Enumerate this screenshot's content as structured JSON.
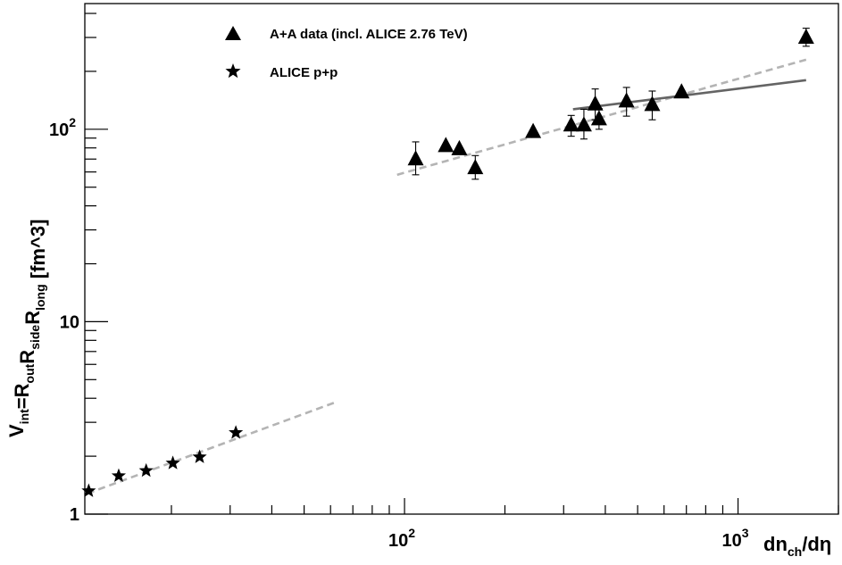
{
  "chart_data": {
    "type": "scatter",
    "x_scale": "log",
    "y_scale": "log",
    "xlim": [
      11,
      2000
    ],
    "ylim": [
      1,
      450
    ],
    "x_major_ticks": [
      {
        "value": 100,
        "base": "10",
        "exp": "2"
      },
      {
        "value": 1000,
        "base": "10",
        "exp": "3"
      }
    ],
    "y_major_ticks": [
      {
        "value": 1,
        "label": "1"
      },
      {
        "value": 10,
        "label": "10"
      },
      {
        "value": 100,
        "base": "10",
        "exp": "2"
      }
    ],
    "xlabel": {
      "a": "dn",
      "a_sub": "ch",
      "b": "/dη"
    },
    "ylabel": {
      "parts": [
        {
          "t": "V",
          "s": "int"
        },
        {
          "t": "=R",
          "s": "out"
        },
        {
          "t": "R",
          "s": "side"
        },
        {
          "t": "R",
          "s": "long"
        },
        {
          "t": " [fm^3]",
          "s": ""
        }
      ]
    },
    "legend": {
      "position": "top-left",
      "entries": [
        {
          "marker": "triangle",
          "label": "A+A data (incl. ALICE 2.76 TeV)"
        },
        {
          "marker": "star",
          "label": "ALICE p+p"
        }
      ]
    },
    "series": [
      {
        "name": "A+A data (incl. ALICE 2.76 TeV)",
        "marker": "triangle",
        "color": "#000000",
        "points": [
          {
            "x": 108,
            "y": 70,
            "lo": 58,
            "hi": 86
          },
          {
            "x": 133,
            "y": 82
          },
          {
            "x": 146,
            "y": 79
          },
          {
            "x": 163,
            "y": 63,
            "lo": 55,
            "hi": 73
          },
          {
            "x": 243,
            "y": 97
          },
          {
            "x": 316,
            "y": 105,
            "lo": 92,
            "hi": 118
          },
          {
            "x": 345,
            "y": 105,
            "lo": 89,
            "hi": 127
          },
          {
            "x": 373,
            "y": 135,
            "lo": 112,
            "hi": 162
          },
          {
            "x": 383,
            "y": 113,
            "lo": 100,
            "hi": 128
          },
          {
            "x": 463,
            "y": 140,
            "lo": 117,
            "hi": 165
          },
          {
            "x": 553,
            "y": 134,
            "lo": 112,
            "hi": 158
          },
          {
            "x": 677,
            "y": 156
          },
          {
            "x": 1600,
            "y": 300,
            "lo": 270,
            "hi": 335
          }
        ]
      },
      {
        "name": "ALICE p+p",
        "marker": "star",
        "color": "#000000",
        "points": [
          {
            "x": 11.3,
            "y": 1.32
          },
          {
            "x": 13.9,
            "y": 1.58
          },
          {
            "x": 16.8,
            "y": 1.68
          },
          {
            "x": 20.2,
            "y": 1.84
          },
          {
            "x": 24.3,
            "y": 1.98
          },
          {
            "x": 31.2,
            "y": 2.65
          }
        ]
      }
    ],
    "fit_lines": [
      {
        "style": "dashed",
        "color": "#b4b4b4",
        "x": [
          95,
          1600
        ],
        "y": [
          58,
          230
        ]
      },
      {
        "style": "solid",
        "color": "#646464",
        "x": [
          320,
          1600
        ],
        "y": [
          127,
          180
        ]
      },
      {
        "style": "dashed",
        "color": "#b4b4b4",
        "x": [
          11.2,
          63
        ],
        "y": [
          1.28,
          3.85
        ]
      }
    ]
  }
}
